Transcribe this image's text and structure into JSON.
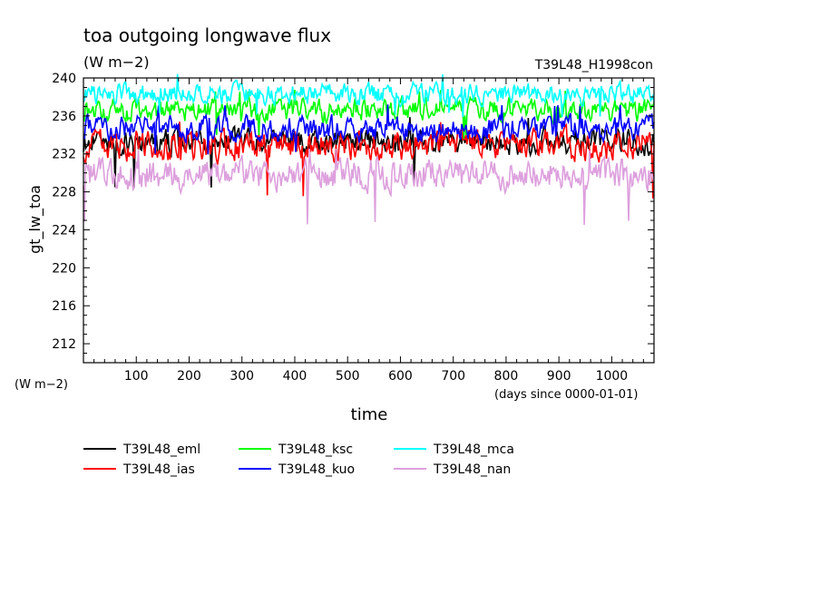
{
  "chart_data": {
    "type": "line",
    "title": "toa outgoing longwave flux",
    "units_top": "(W m−2)",
    "experiment": "T39L48_H1998con",
    "ylabel": "gt_lw_toa",
    "units_left": "(W m−2)",
    "xlabel": "time",
    "x_units": "(days since 0000-01-01)",
    "xlim": [
      0,
      1080
    ],
    "ylim": [
      210,
      240
    ],
    "x_major_ticks": [
      100,
      200,
      300,
      400,
      500,
      600,
      700,
      800,
      900,
      1000
    ],
    "x_tick_labels": [
      "100",
      "200",
      "300",
      "400",
      "500",
      "600",
      "700",
      "800",
      "900",
      "1000"
    ],
    "y_major_ticks": [
      212,
      216,
      220,
      224,
      228,
      232,
      236,
      240
    ],
    "y_tick_labels": [
      "212",
      "216",
      "220",
      "224",
      "228",
      "232",
      "236",
      "240"
    ],
    "grid": false,
    "legend_position": "bottom-left",
    "series": [
      {
        "name": "T39L48_eml",
        "color": "#000000",
        "mean": 233.3,
        "amplitude": 1.1,
        "min": 228.4,
        "max": 236.0
      },
      {
        "name": "T39L48_ias",
        "color": "#ff0000",
        "mean": 232.9,
        "amplitude": 1.3,
        "min": 227.3,
        "max": 235.6
      },
      {
        "name": "T39L48_ksc",
        "color": "#00ff00",
        "mean": 236.6,
        "amplitude": 1.0,
        "min": 233.5,
        "max": 238.8
      },
      {
        "name": "T39L48_kuo",
        "color": "#0000ff",
        "mean": 234.6,
        "amplitude": 1.1,
        "min": 231.8,
        "max": 237.3
      },
      {
        "name": "T39L48_mca",
        "color": "#00ffff",
        "mean": 238.3,
        "amplitude": 0.9,
        "min": 235.8,
        "max": 240.5
      },
      {
        "name": "T39L48_nan",
        "color": "#dda0dd",
        "mean": 229.9,
        "amplitude": 1.4,
        "min": 224.4,
        "max": 232.6
      }
    ]
  }
}
